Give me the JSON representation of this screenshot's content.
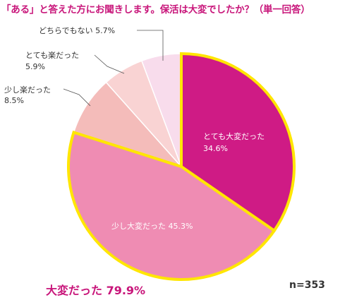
{
  "title": "「ある」と答えた方にお聞きします。保活は大変でしたか？（単一回答）",
  "summary": "大変だった 79.9%",
  "n_label": "n=353",
  "colors": {
    "title": "#c8157a",
    "highlight_border": "#ffe600",
    "slice_text_light": "#ffffff",
    "outside_text": "#333333"
  },
  "chart_data": {
    "type": "pie",
    "title": "「ある」と答えた方にお聞きします。保活は大変でしたか？（単一回答）",
    "n": 353,
    "slices": [
      {
        "label": "とても大変だった",
        "value": 34.6,
        "display": "34.6%",
        "color": "#cf1b85",
        "highlighted": true
      },
      {
        "label": "少し大変だった",
        "value": 45.3,
        "display": "45.3%",
        "color": "#ef8cb3",
        "highlighted": true
      },
      {
        "label": "少し楽だった",
        "value": 8.5,
        "display": "8.5%",
        "color": "#f4bcba",
        "highlighted": false
      },
      {
        "label": "とても楽だった",
        "value": 5.9,
        "display": "5.9%",
        "color": "#f9d3d3",
        "highlighted": false
      },
      {
        "label": "どちらでもない",
        "value": 5.7,
        "display": "5.7%",
        "color": "#f8dcec",
        "highlighted": false
      }
    ],
    "group_total": {
      "label": "大変だった",
      "value": 79.9
    }
  }
}
